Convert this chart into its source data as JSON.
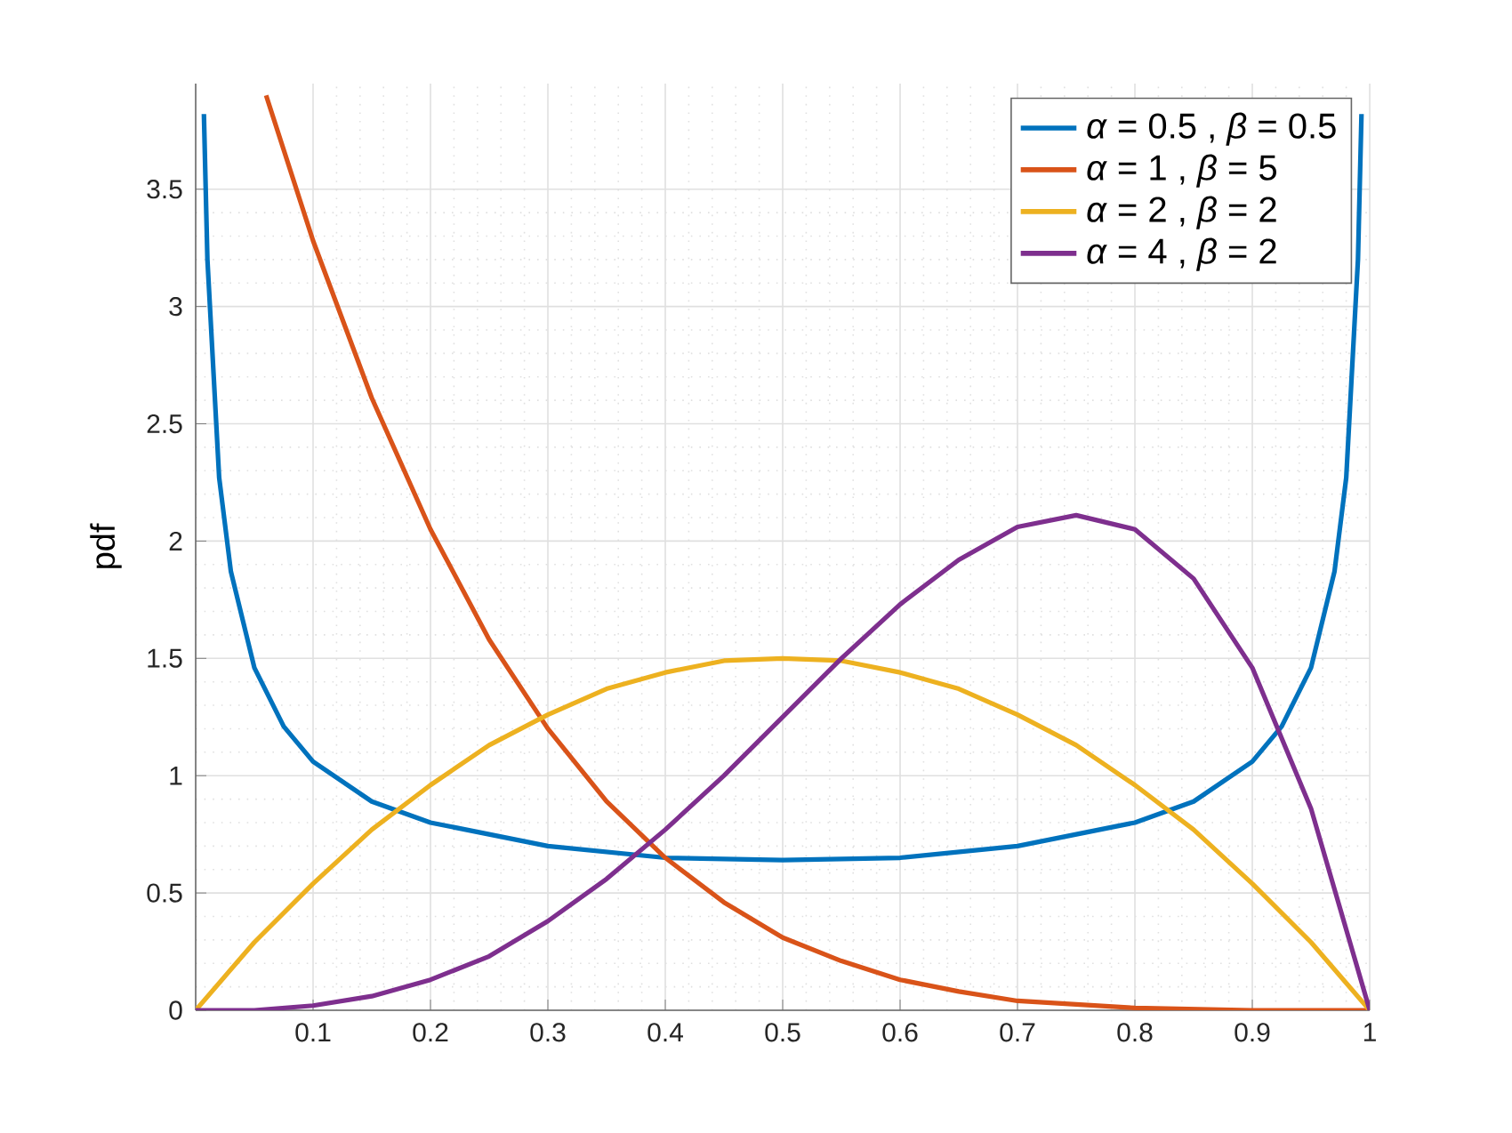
{
  "chart_data": {
    "type": "line",
    "ylabel": "pdf",
    "xlim": [
      0,
      1
    ],
    "ylim": [
      0,
      3.95
    ],
    "xticks": [
      0.1,
      0.2,
      0.3,
      0.4,
      0.5,
      0.6,
      0.7,
      0.8,
      0.9,
      1
    ],
    "yticks": [
      0,
      0.5,
      1,
      1.5,
      2,
      2.5,
      3,
      3.5
    ],
    "grid": true,
    "legend": "top right",
    "line_style": "solid",
    "marker": "none",
    "series": [
      {
        "name": "*α* = 0.5 , *β* = 0.5",
        "color": "#0072bd",
        "x": [
          0.007,
          0.01,
          0.02,
          0.03,
          0.05,
          0.075,
          0.1,
          0.15,
          0.2,
          0.3,
          0.4,
          0.5,
          0.6,
          0.7,
          0.8,
          0.85,
          0.9,
          0.925,
          0.95,
          0.97,
          0.98,
          0.99,
          0.993
        ],
        "values": [
          3.82,
          3.2,
          2.27,
          1.87,
          1.46,
          1.21,
          1.06,
          0.89,
          0.8,
          0.7,
          0.65,
          0.64,
          0.65,
          0.7,
          0.8,
          0.89,
          1.06,
          1.21,
          1.46,
          1.87,
          2.27,
          3.2,
          3.82
        ]
      },
      {
        "name": "*α* = 1 , *β* = 5",
        "color": "#d95319",
        "x": [
          0.06,
          0.1,
          0.15,
          0.2,
          0.25,
          0.3,
          0.35,
          0.4,
          0.45,
          0.5,
          0.55,
          0.6,
          0.65,
          0.7,
          0.8,
          0.9,
          1
        ],
        "values": [
          3.9,
          3.28,
          2.61,
          2.05,
          1.58,
          1.2,
          0.89,
          0.65,
          0.46,
          0.31,
          0.21,
          0.13,
          0.08,
          0.04,
          0.01,
          0,
          0
        ]
      },
      {
        "name": "*α* = 2 , *β* = 2",
        "color": "#edb120",
        "x": [
          0,
          0.05,
          0.1,
          0.15,
          0.2,
          0.25,
          0.3,
          0.35,
          0.4,
          0.45,
          0.5,
          0.55,
          0.6,
          0.65,
          0.7,
          0.75,
          0.8,
          0.85,
          0.9,
          0.95,
          1
        ],
        "values": [
          0,
          0.29,
          0.54,
          0.77,
          0.96,
          1.13,
          1.26,
          1.37,
          1.44,
          1.49,
          1.5,
          1.49,
          1.44,
          1.37,
          1.26,
          1.13,
          0.96,
          0.77,
          0.54,
          0.29,
          0
        ]
      },
      {
        "name": "*α* = 4 , *β* = 2",
        "color": "#7e2f8e",
        "x": [
          0,
          0.05,
          0.1,
          0.15,
          0.2,
          0.25,
          0.3,
          0.35,
          0.4,
          0.45,
          0.5,
          0.55,
          0.6,
          0.65,
          0.7,
          0.75,
          0.8,
          0.85,
          0.9,
          0.95,
          1
        ],
        "values": [
          0,
          0,
          0.02,
          0.06,
          0.13,
          0.23,
          0.38,
          0.56,
          0.77,
          1.0,
          1.25,
          1.5,
          1.73,
          1.92,
          2.06,
          2.11,
          2.05,
          1.84,
          1.46,
          0.86,
          0
        ]
      }
    ]
  }
}
